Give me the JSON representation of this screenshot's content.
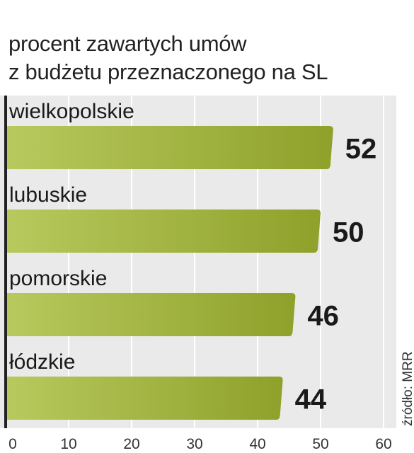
{
  "title_lines": [
    "procent zawartych umów",
    "z budżetu przeznaczonego na SL"
  ],
  "source": "źródło: MRR",
  "colors": {
    "bar_light": "#b8c95e",
    "bar_dark": "#8fa12a",
    "panel_bg": "#eaeaea",
    "gridline": "#ffffff",
    "axis": "#222222",
    "text": "#1a1a1a"
  },
  "chart_data": {
    "type": "bar",
    "orientation": "horizontal",
    "categories": [
      "wielkopolskie",
      "lubuskie",
      "pomorskie",
      "łódzkie"
    ],
    "values": [
      52,
      50,
      46,
      44
    ],
    "value_labels": [
      "52",
      "50",
      "46",
      "44"
    ],
    "xlim": [
      0,
      60
    ],
    "xticks": [
      0,
      10,
      20,
      30,
      40,
      50,
      60
    ],
    "tick_labels": [
      "0",
      "10",
      "20",
      "30",
      "40",
      "50",
      "60"
    ],
    "grid": true,
    "title": "procent zawartych umów z budżetu przeznaczonego na SL"
  }
}
